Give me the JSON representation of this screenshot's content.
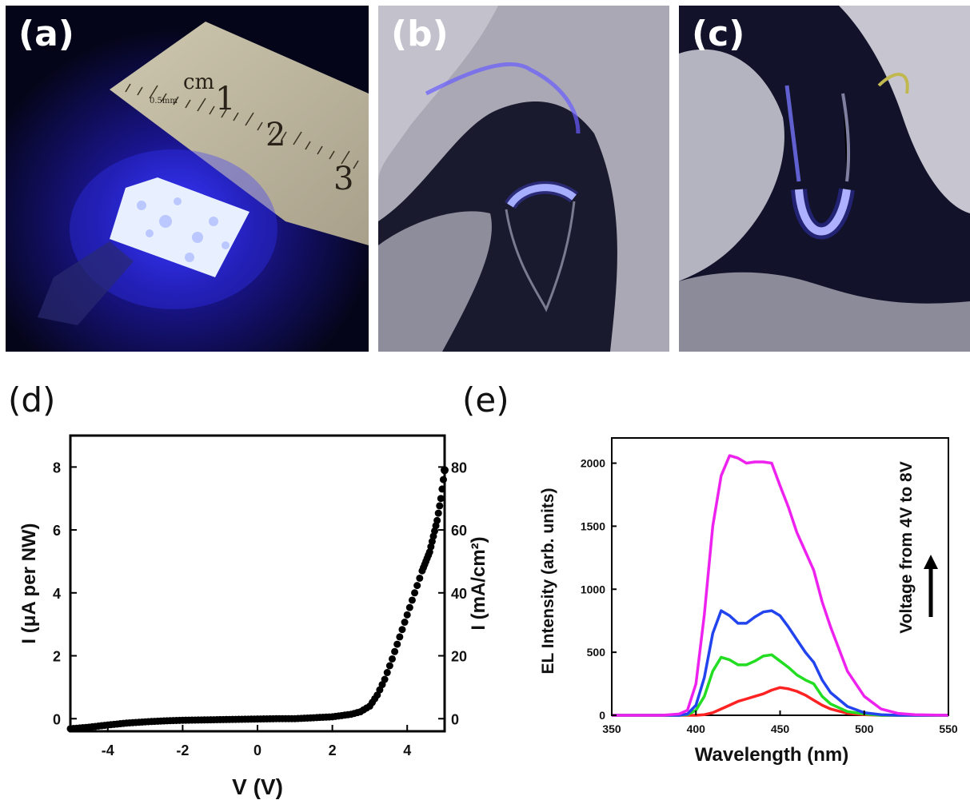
{
  "panels": {
    "a": {
      "label": "(a)"
    },
    "b": {
      "label": "(b)"
    },
    "c": {
      "label": "(c)"
    },
    "d": {
      "label": "(d)"
    },
    "e": {
      "label": "(e)"
    }
  },
  "ruler": {
    "unit": "cm",
    "sub_unit": "0.5mm",
    "marks": [
      "1",
      "2",
      "3"
    ]
  },
  "chart_data": [
    {
      "type": "scatter",
      "xlabel": "V (V)",
      "ylabel": "I (μA per NW)",
      "ylabel_right": "I (mA/cm²)",
      "xlim": [
        -5,
        5
      ],
      "ylim": [
        -0.4,
        9
      ],
      "ylim_right": [
        -4,
        90
      ],
      "xticks": [
        -4,
        -2,
        0,
        2,
        4
      ],
      "yticks": [
        0,
        2,
        4,
        6,
        8
      ],
      "yticks_right": [
        0,
        20,
        40,
        60,
        80
      ],
      "x": [
        -5,
        -4.5,
        -4,
        -3.5,
        -3,
        -2.5,
        -2,
        -1.5,
        -1,
        -0.5,
        0,
        0.5,
        1,
        1.5,
        2,
        2.5,
        2.75,
        3,
        3.2,
        3.4,
        3.6,
        3.8,
        4,
        4.2,
        4.4,
        4.5,
        4.6,
        4.7,
        4.8,
        4.9,
        5
      ],
      "y": [
        -0.32,
        -0.27,
        -0.2,
        -0.14,
        -0.1,
        -0.07,
        -0.05,
        -0.04,
        -0.03,
        -0.02,
        -0.01,
        0,
        0,
        0.03,
        0.06,
        0.14,
        0.22,
        0.4,
        0.75,
        1.25,
        1.9,
        2.6,
        3.3,
        4.0,
        4.7,
        5.0,
        5.3,
        5.8,
        6.3,
        7.0,
        7.9
      ],
      "color": "#000000"
    },
    {
      "type": "line",
      "xlabel": "Wavelength (nm)",
      "ylabel": "EL Intensity (arb. units)",
      "annotation": "Voltage from 4V to 8V",
      "xlim": [
        350,
        550
      ],
      "ylim": [
        0,
        2200
      ],
      "xticks": [
        350,
        400,
        450,
        500,
        550
      ],
      "yticks": [
        0,
        500,
        1000,
        1500,
        2000
      ],
      "x": [
        350,
        380,
        390,
        395,
        400,
        405,
        410,
        415,
        420,
        425,
        430,
        435,
        440,
        445,
        450,
        455,
        460,
        465,
        470,
        475,
        480,
        490,
        500,
        510,
        520,
        530,
        550
      ],
      "series": [
        {
          "color": "#ff2222",
          "values": [
            0,
            0,
            0,
            0,
            0,
            5,
            20,
            50,
            80,
            110,
            130,
            150,
            170,
            200,
            220,
            210,
            190,
            160,
            120,
            80,
            50,
            15,
            5,
            0,
            0,
            0,
            0
          ]
        },
        {
          "color": "#22dd22",
          "values": [
            0,
            0,
            0,
            5,
            40,
            150,
            350,
            460,
            440,
            400,
            400,
            430,
            470,
            480,
            430,
            380,
            320,
            280,
            250,
            150,
            90,
            30,
            10,
            0,
            0,
            0,
            0
          ]
        },
        {
          "color": "#2244ee",
          "values": [
            0,
            0,
            0,
            10,
            80,
            300,
            650,
            830,
            790,
            730,
            730,
            780,
            820,
            830,
            790,
            700,
            600,
            500,
            420,
            280,
            180,
            70,
            20,
            5,
            0,
            0,
            0
          ]
        },
        {
          "color": "#ee22ee",
          "values": [
            0,
            0,
            10,
            40,
            250,
            800,
            1500,
            1900,
            2060,
            2040,
            2000,
            2010,
            2010,
            2000,
            1820,
            1650,
            1450,
            1300,
            1150,
            900,
            700,
            350,
            150,
            50,
            15,
            5,
            0
          ]
        }
      ]
    }
  ]
}
